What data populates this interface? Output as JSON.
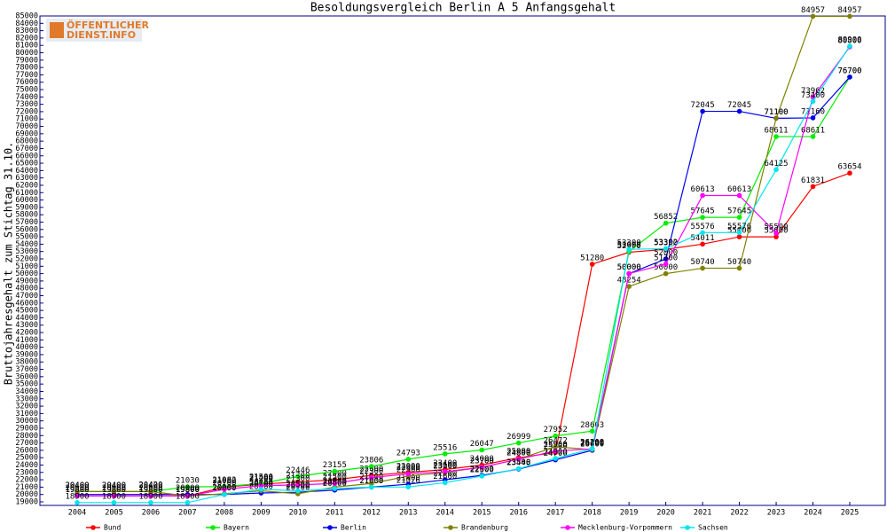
{
  "logo": [
    "ÖFFENTLICHER",
    "DIENST.INFO"
  ],
  "chart_data": {
    "type": "line",
    "title": "Besoldungsvergleich Berlin A 5 Anfangsgehalt",
    "y_label": "Bruttojahresgehalt zum Stichtag 31.10.",
    "categories": [
      "2004",
      "2005",
      "2006",
      "2007",
      "2008",
      "2009",
      "2010",
      "2011",
      "2012",
      "2013",
      "2014",
      "2015",
      "2016",
      "2017",
      "2018",
      "2019",
      "2020",
      "2021",
      "2022",
      "2023",
      "2024",
      "2025"
    ],
    "ylim": [
      19000,
      85000
    ],
    "yticks": [
      19000,
      20000,
      21000,
      22000,
      23000,
      24000,
      25000,
      26000,
      27000,
      28000,
      29000,
      30000,
      31000,
      32000,
      33000,
      34000,
      35000,
      36000,
      37000,
      38000,
      39000,
      40000,
      41000,
      42000,
      43000,
      44000,
      45000,
      46000,
      47000,
      48000,
      49000,
      50000,
      51000,
      52000,
      53000,
      54000,
      55000,
      56000,
      57000,
      58000,
      59000,
      60000,
      61000,
      62000,
      63000,
      64000,
      65000,
      66000,
      67000,
      68000,
      69000,
      70000,
      71000,
      72000,
      73000,
      74000,
      75000,
      76000,
      77000,
      78000,
      79000,
      80000,
      81000,
      82000,
      83000,
      84000,
      85000
    ],
    "series": [
      {
        "name": "Bund",
        "color": "#ff0000",
        "values": [
          19800,
          19800,
          19800,
          19800,
          21000,
          21400,
          21700,
          22000,
          22600,
          23000,
          23400,
          24000,
          25000,
          25700,
          51280,
          52900,
          53300,
          54011,
          55000,
          55000,
          61831,
          63654
        ]
      },
      {
        "name": "Bayern",
        "color": "#00ee00",
        "values": [
          20400,
          20400,
          20420,
          21030,
          21082,
          21500,
          22446,
          23155,
          23806,
          24793,
          25516,
          26047,
          26999,
          27952,
          28603,
          53000,
          56852,
          57645,
          57645,
          68611,
          68611,
          76700
        ]
      },
      {
        "name": "Berlin",
        "color": "#0000ee",
        "values": [
          20000,
          20000,
          20000,
          20000,
          20000,
          20200,
          20300,
          20600,
          21000,
          21400,
          22000,
          22600,
          23448,
          24700,
          26000,
          50000,
          52000,
          72045,
          72045,
          71100,
          71160,
          76700
        ]
      },
      {
        "name": "Brandenburg",
        "color": "#808000",
        "values": [
          20400,
          20400,
          20400,
          19800,
          20100,
          20500,
          20100,
          21000,
          21500,
          22500,
          23000,
          23700,
          24800,
          26472,
          26100,
          48254,
          50000,
          50740,
          50740,
          71100,
          84957,
          84957
        ]
      },
      {
        "name": "Mecklenburg-Vorpommern",
        "color": "#ff00ff",
        "values": [
          19800,
          19800,
          19800,
          19800,
          20700,
          21200,
          21300,
          21500,
          22300,
          22800,
          23100,
          23700,
          24800,
          25900,
          26200,
          50000,
          51300,
          60613,
          60613,
          55500,
          73962,
          80800
        ]
      },
      {
        "name": "Sachsen",
        "color": "#00e5ee",
        "values": [
          18900,
          18900,
          18900,
          18900,
          20000,
          20700,
          20500,
          20800,
          21000,
          21026,
          21600,
          22500,
          23500,
          24900,
          26200,
          53300,
          53392,
          55576,
          55576,
          64125,
          73400,
          80900
        ]
      }
    ]
  }
}
